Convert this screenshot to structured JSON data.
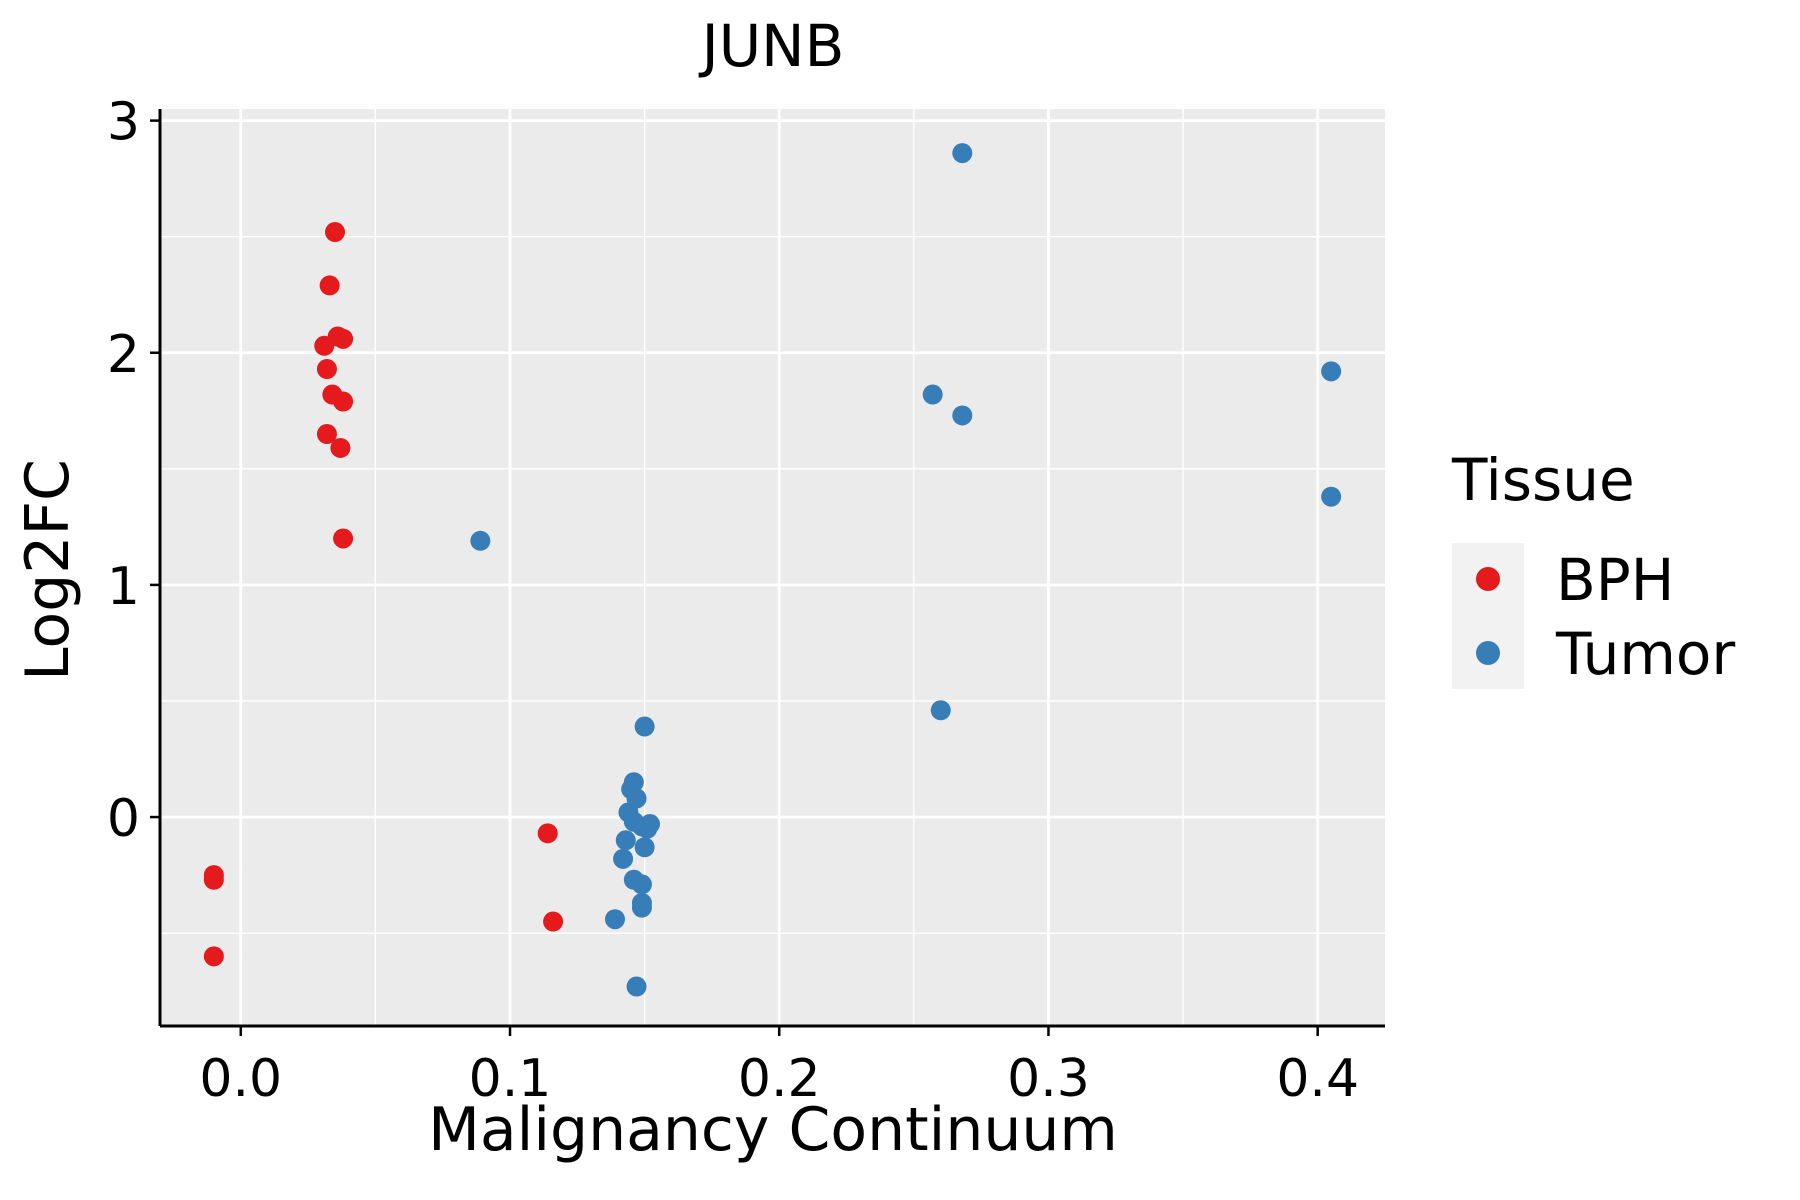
{
  "colors": {
    "panel_bg": "#EBEBEB",
    "grid": "#FFFFFF",
    "axis": "#000000",
    "bph": "#E41A1C",
    "tumor": "#377EB8"
  },
  "chart_data": {
    "type": "scatter",
    "title": "JUNB",
    "xlabel": "Malignancy Continuum",
    "ylabel": "Log2FC",
    "xlim": [
      -0.03,
      0.425
    ],
    "ylim": [
      -0.9,
      3.05
    ],
    "x_ticks": [
      0.0,
      0.1,
      0.2,
      0.3,
      0.4
    ],
    "x_tick_labels": [
      "0.0",
      "0.1",
      "0.2",
      "0.3",
      "0.4"
    ],
    "x_minor_ticks": [
      0.05,
      0.15,
      0.25,
      0.35
    ],
    "y_ticks": [
      0,
      1,
      2,
      3
    ],
    "y_tick_labels": [
      "0",
      "1",
      "2",
      "3"
    ],
    "y_minor_ticks": [
      -0.5,
      0.5,
      1.5,
      2.5
    ],
    "grid": true,
    "legend": {
      "title": "Tissue",
      "position": "right",
      "entries": [
        "BPH",
        "Tumor"
      ]
    },
    "series": [
      {
        "name": "BPH",
        "color": "#E41A1C",
        "points": [
          [
            0.035,
            2.52
          ],
          [
            0.033,
            2.29
          ],
          [
            0.036,
            2.07
          ],
          [
            0.038,
            2.06
          ],
          [
            0.031,
            2.03
          ],
          [
            0.032,
            1.93
          ],
          [
            0.034,
            1.82
          ],
          [
            0.038,
            1.79
          ],
          [
            0.032,
            1.65
          ],
          [
            0.037,
            1.59
          ],
          [
            0.038,
            1.2
          ],
          [
            -0.01,
            -0.25
          ],
          [
            -0.01,
            -0.27
          ],
          [
            -0.01,
            -0.6
          ],
          [
            0.114,
            -0.07
          ],
          [
            0.116,
            -0.45
          ]
        ]
      },
      {
        "name": "Tumor",
        "color": "#377EB8",
        "points": [
          [
            0.268,
            2.86
          ],
          [
            0.257,
            1.82
          ],
          [
            0.268,
            1.73
          ],
          [
            0.405,
            1.92
          ],
          [
            0.405,
            1.38
          ],
          [
            0.089,
            1.19
          ],
          [
            0.26,
            0.46
          ],
          [
            0.15,
            0.39
          ],
          [
            0.146,
            0.15
          ],
          [
            0.145,
            0.12
          ],
          [
            0.147,
            0.08
          ],
          [
            0.144,
            0.02
          ],
          [
            0.146,
            -0.02
          ],
          [
            0.149,
            -0.04
          ],
          [
            0.151,
            -0.05
          ],
          [
            0.152,
            -0.03
          ],
          [
            0.143,
            -0.1
          ],
          [
            0.15,
            -0.13
          ],
          [
            0.142,
            -0.18
          ],
          [
            0.146,
            -0.27
          ],
          [
            0.149,
            -0.29
          ],
          [
            0.149,
            -0.37
          ],
          [
            0.149,
            -0.39
          ],
          [
            0.139,
            -0.44
          ],
          [
            0.147,
            -0.73
          ]
        ]
      }
    ]
  }
}
